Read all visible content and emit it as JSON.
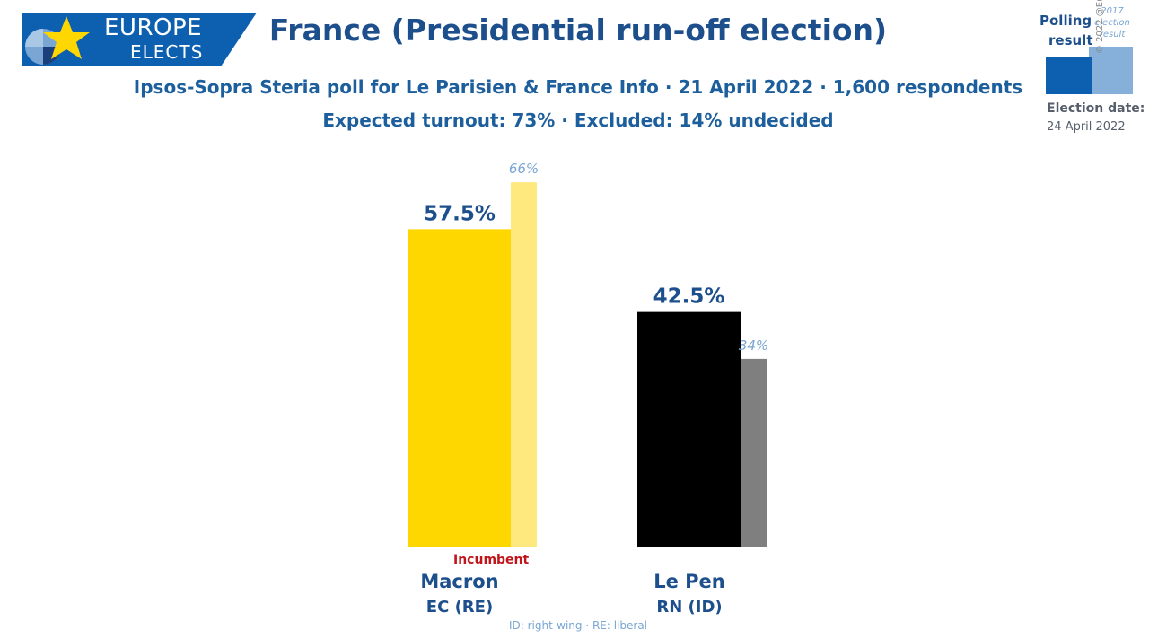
{
  "logo": {
    "line1": "EUROPE",
    "line2": "ELECTS"
  },
  "title": "France (Presidential run-off election)",
  "subtitle": "Ipsos-Sopra Steria poll for Le Parisien & France Info · 21 April 2022 · 1,600 respondents",
  "subtitle2": "Expected turnout: 73% · Excluded: 14% undecided",
  "legend": {
    "polling_line1": "Polling",
    "polling_line2": "result",
    "prev_line1": "2017",
    "prev_line2": "election",
    "prev_line3": "result",
    "polling_color": "#0d5fb0",
    "prev_color": "#86afd9",
    "election_label": "Election date:",
    "election_date": "24 April 2022"
  },
  "copyright": "© 2022 @EuropeElects",
  "incumbent_label": "Incumbent",
  "footnote": "ID: right-wing · RE: liberal",
  "chart_data": {
    "type": "bar",
    "categories": [
      "Macron",
      "Le Pen"
    ],
    "parties": [
      "EC (RE)",
      "RN (ID)"
    ],
    "series": [
      {
        "values": [
          57.5,
          42.5
        ],
        "labels": [
          "57.5%",
          "42.5%"
        ],
        "colors": [
          "#ffd700",
          "#000000"
        ]
      },
      {
        "values": [
          66,
          34
        ],
        "labels": [
          "66%",
          "34%"
        ],
        "colors": [
          "#fee97f",
          "#7f7f7f"
        ]
      }
    ],
    "ylim": [
      0,
      66
    ]
  }
}
